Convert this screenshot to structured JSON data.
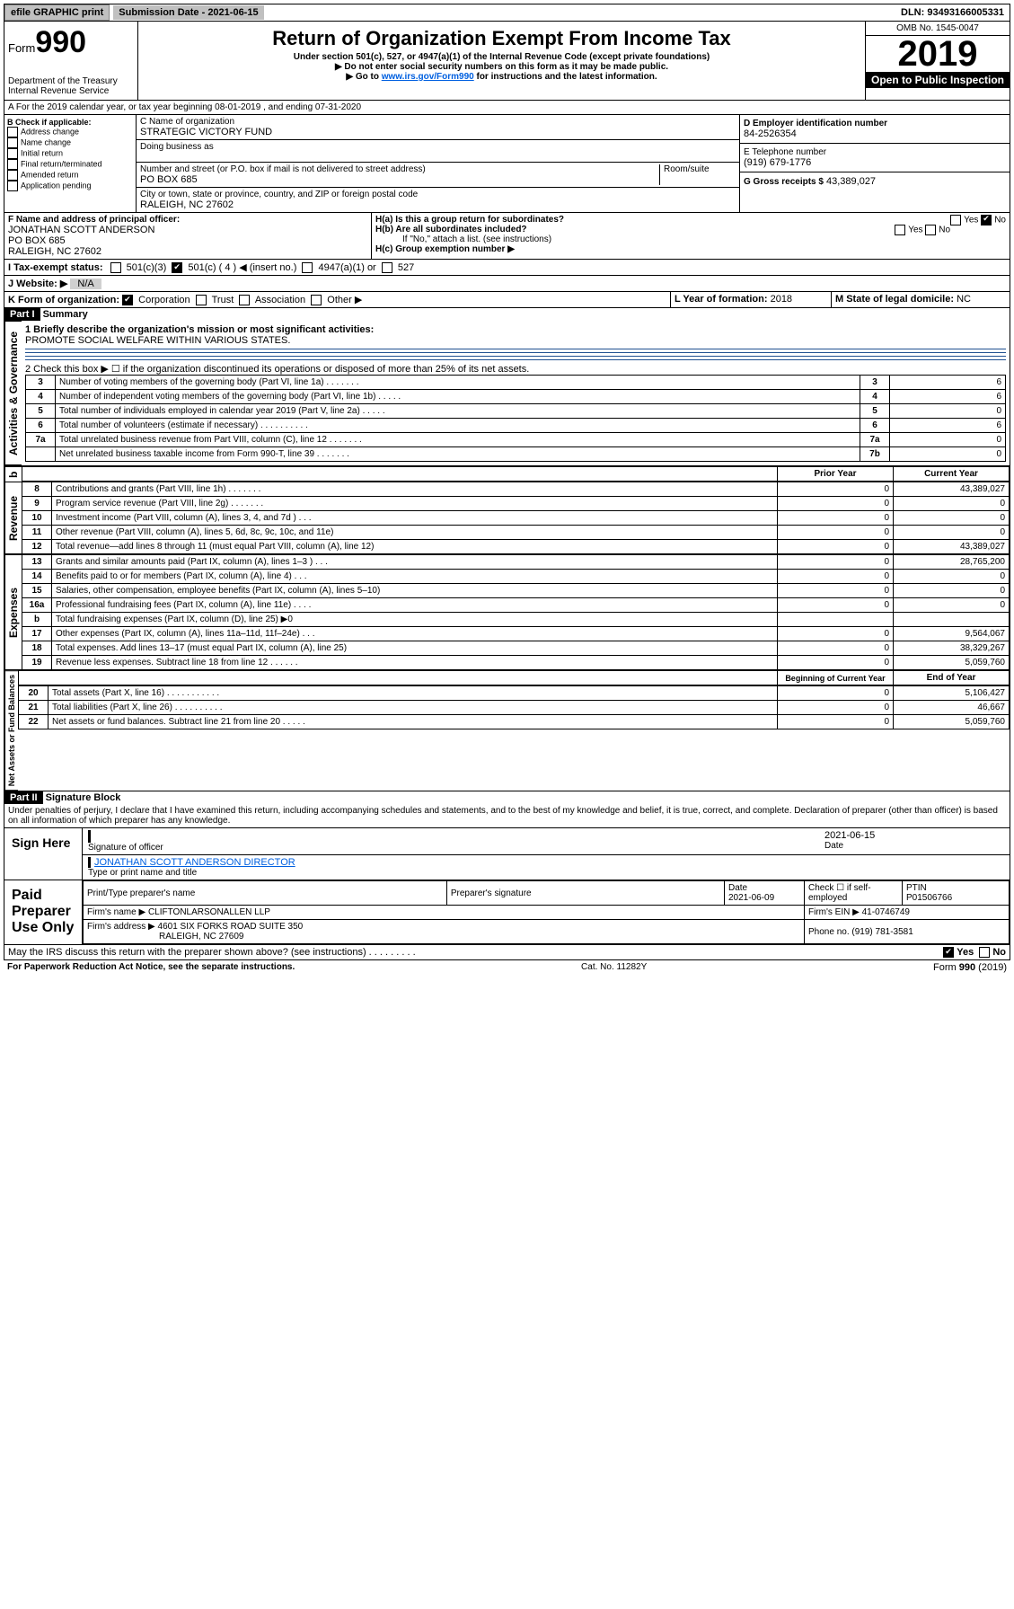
{
  "topbar": {
    "efile": "efile GRAPHIC print",
    "submission": "Submission Date - 2021-06-15",
    "dln": "DLN: 93493166005331"
  },
  "header": {
    "form": "Form",
    "formno": "990",
    "dept": "Department of the Treasury\nInternal Revenue Service",
    "title": "Return of Organization Exempt From Income Tax",
    "sub1": "Under section 501(c), 527, or 4947(a)(1) of the Internal Revenue Code (except private foundations)",
    "sub2": "▶ Do not enter social security numbers on this form as it may be made public.",
    "sub3": "▶ Go to www.irs.gov/Form990 for instructions and the latest information.",
    "sub3_pre": "▶ Go to ",
    "sub3_link": "www.irs.gov/Form990",
    "sub3_post": " for instructions and the latest information.",
    "omb": "OMB No. 1545-0047",
    "year": "2019",
    "open": "Open to Public Inspection"
  },
  "a": {
    "line": "A For the 2019 calendar year, or tax year beginning 08-01-2019    , and ending 07-31-2020"
  },
  "b": {
    "label": "B Check if applicable:",
    "items": [
      "Address change",
      "Name change",
      "Initial return",
      "Final return/terminated",
      "Amended return",
      "Application pending"
    ]
  },
  "c": {
    "name_label": "C Name of organization",
    "name": "STRATEGIC VICTORY FUND",
    "dba_label": "Doing business as",
    "addr_label": "Number and street (or P.O. box if mail is not delivered to street address)",
    "room_label": "Room/suite",
    "addr": "PO BOX 685",
    "city_label": "City or town, state or province, country, and ZIP or foreign postal code",
    "city": "RALEIGH, NC  27602"
  },
  "d": {
    "label": "D Employer identification number",
    "value": "84-2526354"
  },
  "e": {
    "label": "E Telephone number",
    "value": "(919) 679-1776"
  },
  "g": {
    "label": "G Gross receipts $",
    "value": "43,389,027"
  },
  "f": {
    "label": "F  Name and address of principal officer:",
    "name": "JONATHAN SCOTT ANDERSON",
    "addr": "PO BOX 685",
    "city": "RALEIGH, NC  27602"
  },
  "h": {
    "a": "H(a)  Is this a group return for subordinates?",
    "b": "H(b)  Are all subordinates included?",
    "note": "If \"No,\" attach a list. (see instructions)",
    "c": "H(c)  Group exemption number ▶",
    "yes": "Yes",
    "no": "No"
  },
  "i": {
    "label": "I    Tax-exempt status:",
    "opts": [
      "501(c)(3)",
      "501(c) ( 4 ) ◀ (insert no.)",
      "4947(a)(1) or",
      "527"
    ]
  },
  "j": {
    "label": "J    Website: ▶",
    "value": "N/A"
  },
  "k": {
    "label": "K Form of organization:",
    "opts": [
      "Corporation",
      "Trust",
      "Association",
      "Other ▶"
    ]
  },
  "l": {
    "label": "L Year of formation:",
    "value": "2018"
  },
  "m": {
    "label": "M State of legal domicile:",
    "value": "NC"
  },
  "part1": {
    "hdr": "Part I",
    "title": "Summary",
    "q1": "1  Briefly describe the organization's mission or most significant activities:",
    "q1v": "PROMOTE SOCIAL WELFARE WITHIN VARIOUS STATES.",
    "q2": "2   Check this box ▶ ☐  if the organization discontinued its operations or disposed of more than 25% of its net assets.",
    "rows_gov": [
      {
        "n": "3",
        "t": "Number of voting members of the governing body (Part VI, line 1a)  .    .    .    .    .   .    .",
        "k": "3",
        "v": "6"
      },
      {
        "n": "4",
        "t": "Number of independent voting members of the governing body (Part VI, line 1b)  .    .    .    .    .",
        "k": "4",
        "v": "6"
      },
      {
        "n": "5",
        "t": "Total number of individuals employed in calendar year 2019 (Part V, line 2a)  .    .    .    .    .",
        "k": "5",
        "v": "0"
      },
      {
        "n": "6",
        "t": "Total number of volunteers (estimate if necessary)  .    .    .    .    .    .    .    .    .    .",
        "k": "6",
        "v": "6"
      },
      {
        "n": "7a",
        "t": "Total unrelated business revenue from Part VIII, column (C), line 12  .    .    .    .    .    .    .",
        "k": "7a",
        "v": "0"
      },
      {
        "n": "",
        "t": "Net unrelated business taxable income from Form 990-T, line 39  .    .    .    .    .    .    .",
        "k": "7b",
        "v": "0"
      }
    ],
    "prior": "Prior Year",
    "current": "Current Year",
    "rows_rev": [
      {
        "n": "8",
        "t": "Contributions and grants (Part VIII, line 1h)  .    .    .    .    .    .    .",
        "p": "0",
        "c": "43,389,027"
      },
      {
        "n": "9",
        "t": "Program service revenue (Part VIII, line 2g)  .    .    .    .    .    .    .",
        "p": "0",
        "c": "0"
      },
      {
        "n": "10",
        "t": "Investment income (Part VIII, column (A), lines 3, 4, and 7d )  .    .    .",
        "p": "0",
        "c": "0"
      },
      {
        "n": "11",
        "t": "Other revenue (Part VIII, column (A), lines 5, 6d, 8c, 9c, 10c, and 11e)",
        "p": "0",
        "c": "0"
      },
      {
        "n": "12",
        "t": "Total revenue—add lines 8 through 11 (must equal Part VIII, column (A), line 12)",
        "p": "0",
        "c": "43,389,027"
      }
    ],
    "rows_exp": [
      {
        "n": "13",
        "t": "Grants and similar amounts paid (Part IX, column (A), lines 1–3 )  .    .    .",
        "p": "0",
        "c": "28,765,200"
      },
      {
        "n": "14",
        "t": "Benefits paid to or for members (Part IX, column (A), line 4)  .    .    .",
        "p": "0",
        "c": "0"
      },
      {
        "n": "15",
        "t": "Salaries, other compensation, employee benefits (Part IX, column (A), lines 5–10)",
        "p": "0",
        "c": "0"
      },
      {
        "n": "16a",
        "t": "Professional fundraising fees (Part IX, column (A), line 11e)  .    .    .    .",
        "p": "0",
        "c": "0"
      },
      {
        "n": "b",
        "t": "Total fundraising expenses (Part IX, column (D), line 25) ▶0",
        "p": "",
        "c": "",
        "shade": true
      },
      {
        "n": "17",
        "t": "Other expenses (Part IX, column (A), lines 11a–11d, 11f–24e)  .    .    .",
        "p": "0",
        "c": "9,564,067"
      },
      {
        "n": "18",
        "t": "Total expenses. Add lines 13–17 (must equal Part IX, column (A), line 25)",
        "p": "0",
        "c": "38,329,267"
      },
      {
        "n": "19",
        "t": "Revenue less expenses. Subtract line 18 from line 12  .    .    .    .    .    .",
        "p": "0",
        "c": "5,059,760"
      }
    ],
    "begin": "Beginning of Current Year",
    "end": "End of Year",
    "rows_net": [
      {
        "n": "20",
        "t": "Total assets (Part X, line 16)  .    .    .    .    .    .    .    .    .    .    .",
        "p": "0",
        "c": "5,106,427"
      },
      {
        "n": "21",
        "t": "Total liabilities (Part X, line 26)  .    .    .    .    .    .    .    .    .    .",
        "p": "0",
        "c": "46,667"
      },
      {
        "n": "22",
        "t": "Net assets or fund balances. Subtract line 21 from line 20  .    .    .    .    .",
        "p": "0",
        "c": "5,059,760"
      }
    ],
    "sidetabs": [
      "Activities & Governance",
      "Revenue",
      "Expenses",
      "Net Assets or Fund Balances"
    ]
  },
  "part2": {
    "hdr": "Part II",
    "title": "Signature Block",
    "perjury": "Under penalties of perjury, I declare that I have examined this return, including accompanying schedules and statements, and to the best of my knowledge and belief, it is true, correct, and complete. Declaration of preparer (other than officer) is based on all information of which preparer has any knowledge.",
    "sign_here": "Sign Here",
    "sig_label": "Signature of officer",
    "date_label": "Date",
    "date": "2021-06-15",
    "name": "JONATHAN SCOTT ANDERSON  DIRECTOR",
    "name_label": "Type or print name and title",
    "paid": "Paid Preparer Use Only",
    "prep_name_label": "Print/Type preparer's name",
    "prep_sig_label": "Preparer's signature",
    "prep_date_label": "Date",
    "prep_date": "2021-06-09",
    "self": "Check ☐ if self-employed",
    "ptin_label": "PTIN",
    "ptin": "P01506766",
    "firm_label": "Firm's name    ▶",
    "firm": "CLIFTONLARSONALLEN LLP",
    "ein_label": "Firm's EIN ▶",
    "ein": "41-0746749",
    "addr_label": "Firm's address ▶",
    "addr": "4601 SIX FORKS ROAD SUITE 350",
    "addr2": "RALEIGH, NC  27609",
    "phone_label": "Phone no.",
    "phone": "(919) 781-3581",
    "discuss": "May the IRS discuss this return with the preparer shown above? (see instructions)   .    .    .    .    .    .    .    .    .",
    "yes": "Yes",
    "no": "No"
  },
  "footer": {
    "pra": "For Paperwork Reduction Act Notice, see the separate instructions.",
    "cat": "Cat. No. 11282Y",
    "form": "Form 990 (2019)"
  }
}
